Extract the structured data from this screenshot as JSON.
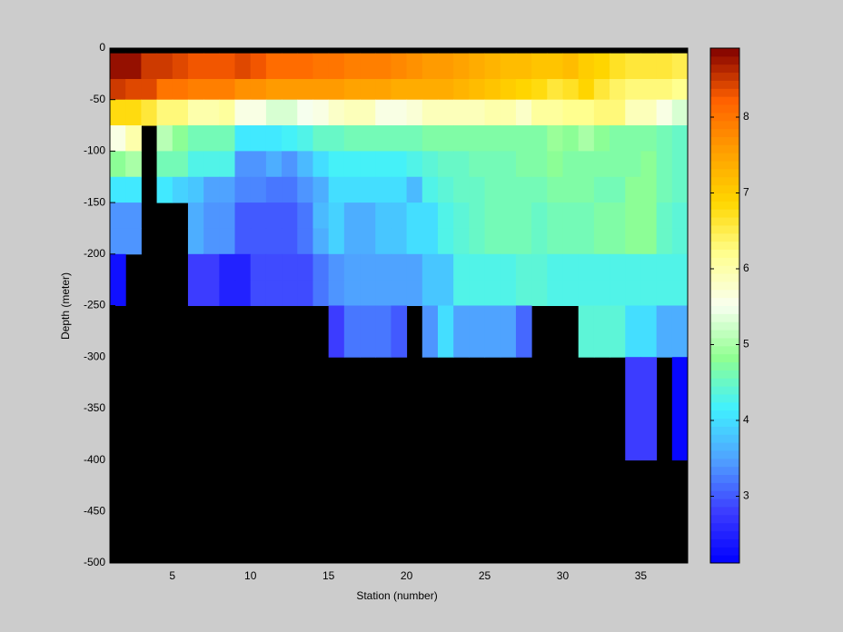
{
  "chart_data": {
    "type": "heatmap",
    "xlabel": "Station (number)",
    "ylabel": "Depth (meter)",
    "x_edges": [
      1,
      2,
      3,
      4,
      5,
      6,
      7,
      8,
      9,
      10,
      11,
      12,
      13,
      14,
      15,
      16,
      17,
      18,
      19,
      20,
      21,
      22,
      23,
      24,
      25,
      26,
      27,
      28,
      29,
      30,
      31,
      32,
      33,
      34,
      35,
      36,
      37,
      38
    ],
    "y_edges": [
      0,
      -5,
      -30,
      -50,
      -75,
      -100,
      -125,
      -150,
      -175,
      -200,
      -225,
      -250,
      -300,
      -400,
      -500
    ],
    "values": [
      [
        null,
        null,
        null,
        null,
        null,
        null,
        null,
        null,
        null,
        null,
        null,
        null,
        null,
        null,
        null,
        null,
        null,
        null,
        null,
        null,
        null,
        null,
        null,
        null,
        null,
        null,
        null,
        null,
        null,
        null,
        null,
        null,
        null,
        null,
        null,
        null,
        null
      ],
      [
        8.8,
        8.8,
        8.5,
        8.5,
        8.4,
        8.3,
        8.3,
        8.3,
        8.4,
        8.3,
        8.1,
        8.1,
        8.1,
        8.0,
        8.0,
        7.9,
        7.9,
        7.9,
        7.8,
        7.7,
        7.6,
        7.6,
        7.5,
        7.4,
        7.3,
        7.2,
        7.2,
        7.1,
        7.1,
        7.2,
        7.0,
        6.9,
        6.7,
        6.6,
        6.6,
        6.6,
        6.5
      ],
      [
        8.5,
        8.4,
        8.4,
        8.0,
        8.0,
        7.9,
        7.9,
        7.9,
        7.7,
        7.7,
        7.6,
        7.6,
        7.6,
        7.6,
        7.6,
        7.5,
        7.5,
        7.5,
        7.4,
        7.4,
        7.4,
        7.4,
        7.3,
        7.2,
        7.1,
        7.0,
        6.9,
        6.8,
        6.6,
        6.7,
        6.9,
        6.6,
        6.4,
        6.3,
        6.3,
        6.3,
        6.2
      ],
      [
        6.8,
        6.8,
        6.6,
        6.3,
        6.3,
        6.0,
        6.0,
        6.1,
        5.6,
        5.6,
        5.3,
        5.3,
        5.5,
        5.6,
        5.8,
        5.9,
        5.9,
        5.6,
        5.6,
        5.7,
        5.9,
        5.9,
        5.9,
        5.9,
        6.0,
        6.0,
        5.8,
        6.1,
        6.1,
        6.2,
        6.2,
        6.3,
        6.3,
        5.9,
        5.9,
        5.6,
        5.3
      ],
      [
        5.6,
        6.0,
        null,
        5.1,
        4.8,
        4.6,
        4.6,
        4.6,
        4.1,
        4.1,
        4.1,
        4.2,
        4.3,
        4.5,
        4.5,
        4.6,
        4.6,
        4.6,
        4.6,
        4.6,
        4.7,
        4.7,
        4.7,
        4.7,
        4.7,
        4.7,
        4.7,
        4.7,
        4.9,
        4.8,
        5.0,
        4.8,
        4.7,
        4.7,
        4.7,
        4.6,
        4.5
      ],
      [
        4.8,
        5.0,
        null,
        4.6,
        4.6,
        4.3,
        4.3,
        4.3,
        3.4,
        3.4,
        3.6,
        3.4,
        3.7,
        4.0,
        4.2,
        4.2,
        4.2,
        4.2,
        4.2,
        4.3,
        4.4,
        4.5,
        4.5,
        4.6,
        4.6,
        4.6,
        4.7,
        4.7,
        4.8,
        4.7,
        4.7,
        4.7,
        4.7,
        4.7,
        4.8,
        4.6,
        4.5
      ],
      [
        4.1,
        4.1,
        null,
        4.1,
        3.9,
        3.8,
        3.5,
        3.5,
        3.3,
        3.3,
        3.2,
        3.2,
        3.4,
        3.6,
        4.0,
        4.0,
        4.0,
        4.0,
        4.0,
        3.7,
        4.3,
        4.4,
        4.5,
        4.5,
        4.6,
        4.6,
        4.6,
        4.6,
        4.7,
        4.7,
        4.7,
        4.6,
        4.6,
        4.8,
        4.8,
        4.6,
        4.5
      ],
      [
        3.4,
        3.4,
        null,
        null,
        null,
        3.6,
        3.4,
        3.4,
        3.0,
        3.0,
        3.0,
        3.0,
        3.2,
        3.7,
        3.9,
        3.6,
        3.6,
        3.8,
        3.8,
        4.0,
        4.0,
        4.3,
        4.4,
        4.5,
        4.6,
        4.6,
        4.6,
        4.5,
        4.6,
        4.6,
        4.6,
        4.7,
        4.7,
        4.8,
        4.8,
        4.5,
        4.4
      ],
      [
        3.4,
        3.4,
        null,
        null,
        null,
        3.6,
        3.4,
        3.4,
        3.0,
        3.0,
        3.0,
        3.0,
        3.2,
        3.6,
        3.9,
        3.6,
        3.6,
        3.8,
        3.8,
        4.0,
        4.0,
        4.3,
        4.4,
        4.5,
        4.6,
        4.6,
        4.6,
        4.5,
        4.6,
        4.6,
        4.6,
        4.7,
        4.7,
        4.8,
        4.8,
        4.5,
        4.4
      ],
      [
        2.3,
        null,
        null,
        null,
        null,
        2.8,
        2.8,
        2.5,
        2.5,
        2.9,
        2.9,
        2.9,
        2.9,
        3.2,
        3.4,
        3.5,
        3.5,
        3.5,
        3.5,
        3.5,
        3.8,
        3.8,
        4.3,
        4.3,
        4.3,
        4.3,
        4.4,
        4.4,
        4.3,
        4.3,
        4.3,
        4.3,
        4.3,
        4.3,
        4.3,
        4.3,
        4.3
      ],
      [
        2.3,
        null,
        null,
        null,
        null,
        2.8,
        2.8,
        2.5,
        2.5,
        2.9,
        2.9,
        2.9,
        2.9,
        3.2,
        3.4,
        3.5,
        3.5,
        3.5,
        3.5,
        3.5,
        3.8,
        3.8,
        4.3,
        4.3,
        4.3,
        4.3,
        4.4,
        4.4,
        4.3,
        4.3,
        4.3,
        4.3,
        4.3,
        4.3,
        4.3,
        4.3,
        4.3
      ],
      [
        null,
        null,
        null,
        null,
        null,
        null,
        null,
        null,
        null,
        null,
        null,
        null,
        null,
        null,
        2.8,
        3.2,
        3.2,
        3.2,
        3.0,
        null,
        3.4,
        4.0,
        3.5,
        3.5,
        3.5,
        3.5,
        3.1,
        null,
        null,
        null,
        4.4,
        4.4,
        4.4,
        4.0,
        4.0,
        3.6,
        3.6
      ],
      [
        null,
        null,
        null,
        null,
        null,
        null,
        null,
        null,
        null,
        null,
        null,
        null,
        null,
        null,
        null,
        null,
        null,
        null,
        null,
        null,
        null,
        null,
        null,
        null,
        null,
        null,
        null,
        null,
        null,
        null,
        null,
        null,
        null,
        2.8,
        2.8,
        null,
        2.2
      ],
      [
        null,
        null,
        null,
        null,
        null,
        null,
        null,
        null,
        null,
        null,
        null,
        null,
        null,
        null,
        null,
        null,
        null,
        null,
        null,
        null,
        null,
        null,
        null,
        null,
        null,
        null,
        null,
        null,
        null,
        null,
        null,
        null,
        null,
        null,
        null,
        null,
        null
      ]
    ],
    "xlim": [
      1,
      38
    ],
    "ylim": [
      -500,
      0
    ],
    "xticks": [
      5,
      10,
      15,
      20,
      25,
      30,
      35
    ],
    "yticks": [
      0,
      -50,
      -100,
      -150,
      -200,
      -250,
      -300,
      -350,
      -400,
      -450,
      -500
    ],
    "clim": [
      2.12,
      8.91
    ],
    "cticks": [
      3,
      4,
      5,
      6,
      7,
      8
    ],
    "colormap": [
      "#0000ff",
      "#3c3cff",
      "#50a0ff",
      "#40f0ff",
      "#90ff90",
      "#f8fff0",
      "#ffff90",
      "#ffd700",
      "#ff9f00",
      "#ff6000",
      "#800000"
    ],
    "nan_color": "#000000"
  }
}
